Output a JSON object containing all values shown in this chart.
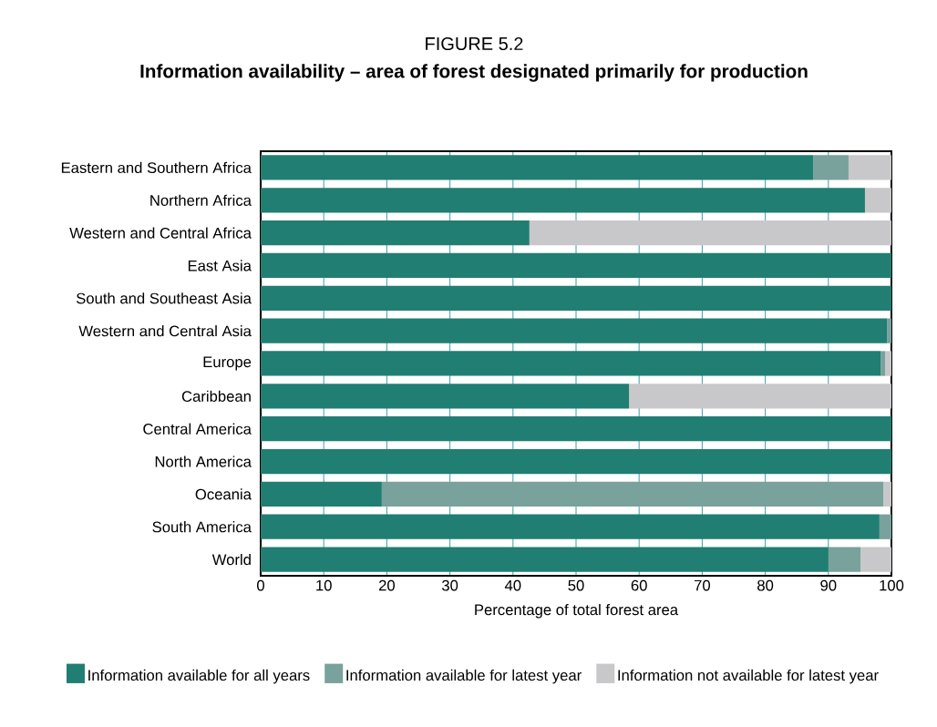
{
  "chart_data": {
    "type": "bar",
    "orientation": "horizontal",
    "stacked": true,
    "title": "FIGURE 5.2",
    "subtitle": "Information availability – area of forest designated primarily for production",
    "xlabel": "Percentage of total forest area",
    "categories": [
      "Eastern and Southern Africa",
      "Northern Africa",
      "Western and Central Africa",
      "East Asia",
      "South and Southeast Asia",
      "Western and Central Asia",
      "Europe",
      "Caribbean",
      "Central America",
      "North America",
      "Oceania",
      "South America",
      "World"
    ],
    "series": [
      {
        "name": "Information available for all years",
        "color": "#217e72",
        "values": [
          87.6,
          95.8,
          42.6,
          100,
          100,
          99.3,
          98.3,
          58.4,
          100,
          100,
          19.2,
          98.1,
          90.0
        ]
      },
      {
        "name": "Information available for latest year",
        "color": "#78a29b",
        "values": [
          5.6,
          0,
          0,
          0,
          0,
          0.7,
          0.7,
          0,
          0,
          0,
          79.5,
          1.9,
          5.1
        ]
      },
      {
        "name": "Information not available for latest year",
        "color": "#c8c8ca",
        "values": [
          6.8,
          4.2,
          57.4,
          0,
          0,
          0,
          1.0,
          41.6,
          0,
          0,
          1.3,
          0,
          4.9
        ]
      }
    ],
    "xlim": [
      0,
      100
    ],
    "xticks": [
      0,
      10,
      20,
      30,
      40,
      50,
      60,
      70,
      80,
      90,
      100
    ],
    "grid": "x",
    "legend": "bottom"
  }
}
